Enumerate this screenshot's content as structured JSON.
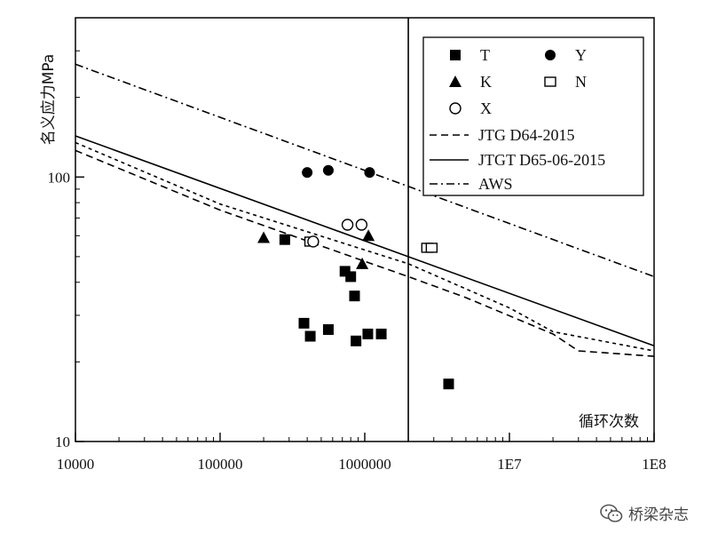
{
  "chart_data": {
    "type": "scatter",
    "xscale": "log",
    "yscale": "log",
    "xlim": [
      10000,
      100000000
    ],
    "ylim": [
      10,
      400
    ],
    "xlabel": "循环次数",
    "ylabel": "名义应力MPa",
    "x_tick_labels": [
      "10000",
      "100000",
      "1000000",
      "1E7",
      "1E8"
    ],
    "x_tick_values": [
      10000,
      100000,
      1000000,
      10000000,
      100000000
    ],
    "y_tick_labels": [
      "10",
      "100"
    ],
    "y_tick_values": [
      10,
      100
    ],
    "vline_x": 2000000,
    "grid": false,
    "legend_position": "top-right",
    "series": [
      {
        "name": "T",
        "marker": "filled-square",
        "points": [
          [
            280000,
            58
          ],
          [
            380000,
            28
          ],
          [
            420000,
            25
          ],
          [
            560000,
            26.5
          ],
          [
            730000,
            44
          ],
          [
            800000,
            42
          ],
          [
            850000,
            35.5
          ],
          [
            870000,
            24
          ],
          [
            1050000,
            25.5
          ],
          [
            1300000,
            25.5
          ],
          [
            3800000,
            16.5
          ]
        ]
      },
      {
        "name": "Y",
        "marker": "filled-circle",
        "points": [
          [
            400000,
            104
          ],
          [
            560000,
            106
          ],
          [
            1080000,
            104
          ]
        ]
      },
      {
        "name": "K",
        "marker": "filled-triangle",
        "points": [
          [
            200000,
            59
          ],
          [
            960000,
            47
          ],
          [
            1060000,
            60
          ]
        ]
      },
      {
        "name": "N",
        "marker": "open-square",
        "points": [
          [
            420000,
            57
          ],
          [
            2700000,
            54
          ],
          [
            2900000,
            54
          ]
        ]
      },
      {
        "name": "X",
        "marker": "open-circle",
        "points": [
          [
            440000,
            57
          ],
          [
            760000,
            66
          ],
          [
            950000,
            66
          ]
        ]
      },
      {
        "name": "JTG D64-2015",
        "style": "dash",
        "points": [
          [
            10000,
            126
          ],
          [
            100000,
            75
          ],
          [
            1000000,
            48
          ],
          [
            2000000,
            42
          ],
          [
            5000000,
            35
          ],
          [
            20000000,
            25.5
          ],
          [
            30000000,
            22
          ],
          [
            100000000,
            21
          ]
        ]
      },
      {
        "name": "JTGT D65-06-2015",
        "style": "solid",
        "points": [
          [
            10000,
            143
          ],
          [
            100000000,
            23
          ]
        ]
      },
      {
        "name": "AWS",
        "style": "dash-dot",
        "points": [
          [
            10000,
            267
          ],
          [
            100000000,
            42
          ]
        ]
      },
      {
        "name": "",
        "style": "short-dash",
        "points": [
          [
            10000,
            135
          ],
          [
            100000,
            79
          ],
          [
            1000000,
            53
          ],
          [
            2000000,
            47
          ],
          [
            10000000,
            32
          ],
          [
            20000000,
            26
          ],
          [
            100000000,
            22
          ]
        ]
      }
    ]
  },
  "watermark": {
    "text": "桥梁杂志",
    "icon": "wechat-icon"
  }
}
